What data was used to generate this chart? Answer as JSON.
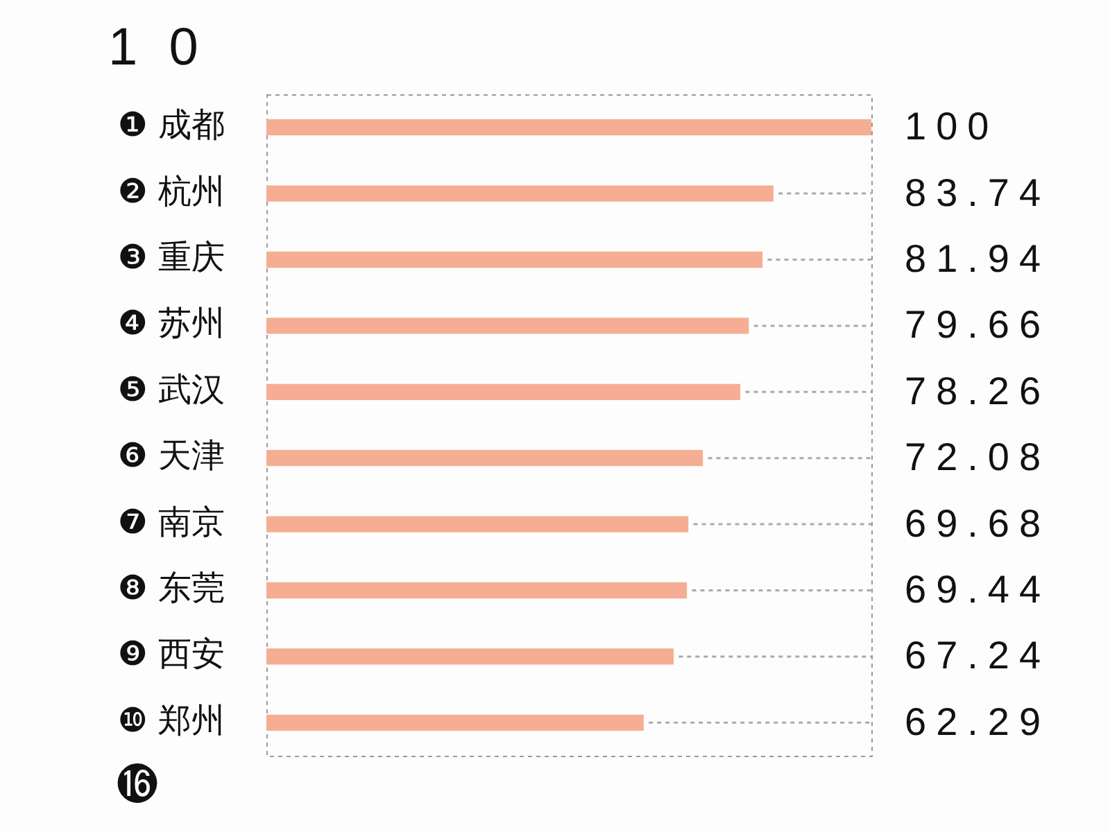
{
  "chart_data": {
    "type": "bar",
    "orientation": "horizontal",
    "categories": [
      "❶ 成都",
      "❷ 杭州",
      "❸ 重庆",
      "❹ 苏州",
      "❺ 武汉",
      "❻ 天津",
      "❼ 南京",
      "❽ 东莞",
      "❾ 西安",
      "❿ 郑州"
    ],
    "values": [
      100,
      83.74,
      81.94,
      79.66,
      78.26,
      72.08,
      69.68,
      69.44,
      67.24,
      62.29
    ],
    "value_labels": [
      "100",
      "83.74",
      "81.94",
      "79.66",
      "78.26",
      "72.08",
      "69.68",
      "69.44",
      "67.24",
      "62.29"
    ],
    "color": "#f5ae93",
    "xlim": [
      0,
      100
    ],
    "tick_labels": "y",
    "annotations": [
      "1 0",
      "⓰"
    ]
  }
}
